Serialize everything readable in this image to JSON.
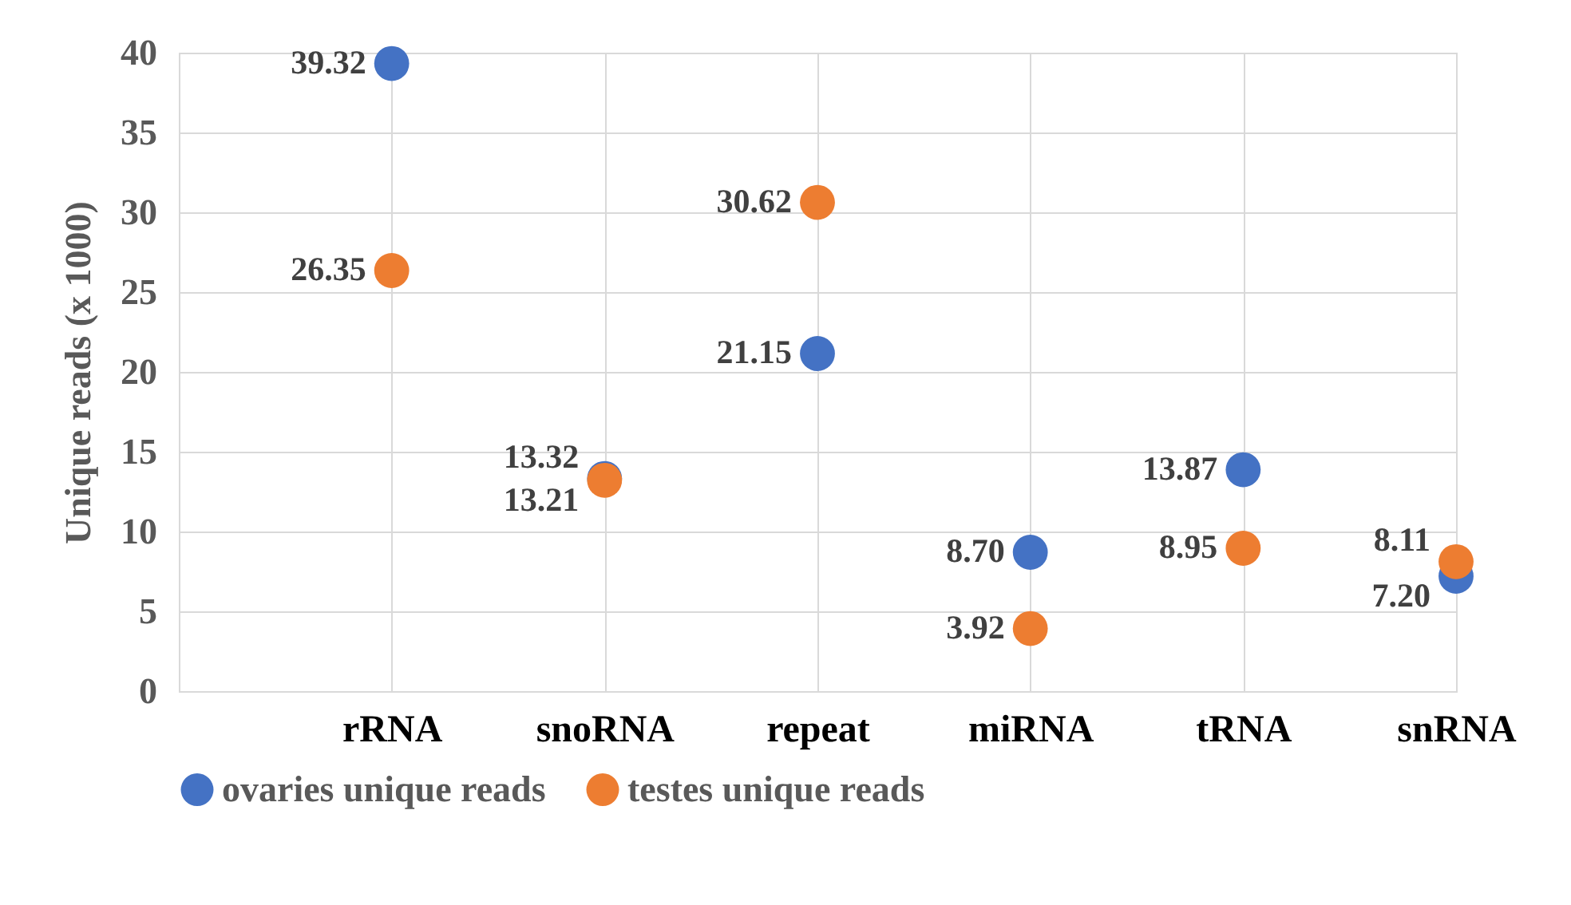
{
  "chart_data": {
    "type": "scatter",
    "ylabel": "Unique reads (x 1000)",
    "categories": [
      null,
      "rRNA",
      "snoRNA",
      "repeat",
      "miRNA",
      "tRNA",
      "snRNA"
    ],
    "series": [
      {
        "name": "ovaries unique reads",
        "color": "#4472c4",
        "values": [
          null,
          39.32,
          13.32,
          21.15,
          8.7,
          13.87,
          7.2
        ],
        "value_labels": [
          null,
          "39.32",
          "13.32",
          "21.15",
          "8.70",
          "13.87",
          "7.20"
        ]
      },
      {
        "name": "testes unique reads",
        "color": "#ed7d31",
        "values": [
          null,
          26.35,
          13.21,
          30.62,
          3.92,
          8.95,
          8.11
        ],
        "value_labels": [
          null,
          "26.35",
          "13.21",
          "30.62",
          "3.92",
          "8.95",
          "8.11"
        ]
      }
    ],
    "ylim": [
      0,
      40
    ],
    "yticks": [
      0,
      5,
      10,
      15,
      20,
      25,
      30,
      35,
      40
    ],
    "grid": true,
    "legend": "bottom",
    "marker": "circle"
  }
}
